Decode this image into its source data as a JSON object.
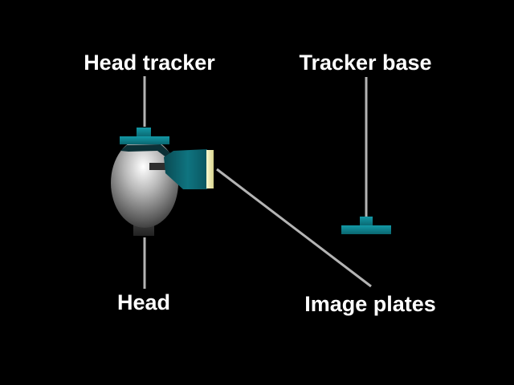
{
  "labels": {
    "head_tracker": "Head tracker",
    "tracker_base": "Tracker base",
    "head": "Head",
    "image_plates": "Image plates"
  },
  "colors": {
    "background": "#000000",
    "text": "#ffffff",
    "leader_line": "#b4b4b4",
    "tracker_teal": "#0e8a96",
    "plate": "#e6e3a8"
  }
}
